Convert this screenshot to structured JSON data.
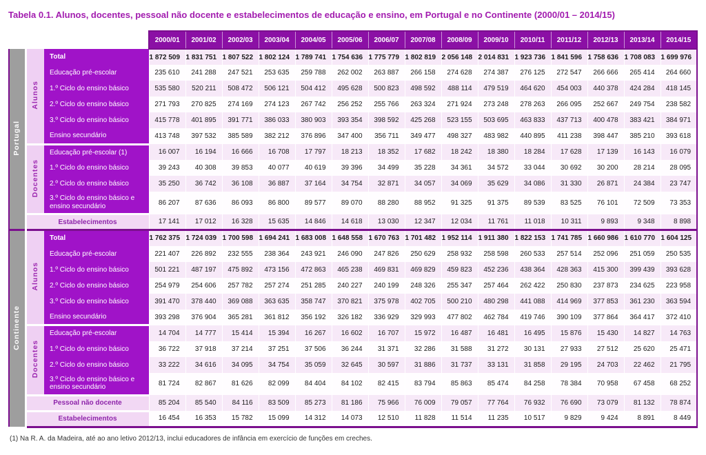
{
  "title": "Tabela 0.1. Alunos, docentes, pessoal não docente e estabelecimentos de educação e ensino, em Portugal e no Continente (2000/01 – 2014/15)",
  "footnote": "(1) Na R. A. da Madeira, até ao ano letivo 2012/13, inclui educadores de infância em exercício de funções em creches.",
  "colors": {
    "header_bg": "#8B10A5",
    "row_label_bg": "#A013C8",
    "group_bg": "#9E9E9E",
    "subgroup_bg": "#EFD0F3",
    "stripe_bg": "#F7E9F8",
    "special_label_bg": "#F2D8F4",
    "frame_accent": "#7B0F8E",
    "title_color": "#A21CAF"
  },
  "chart_data": {
    "type": "table",
    "title": "Tabela 0.1. Alunos, docentes, pessoal não docente e estabelecimentos de educação e ensino, em Portugal e no Continente (2000/01 – 2014/15)",
    "years": [
      "2000/01",
      "2001/02",
      "2002/03",
      "2003/04",
      "2004/05",
      "2005/06",
      "2006/07",
      "2007/08",
      "2008/09",
      "2009/10",
      "2010/11",
      "2011/12",
      "2012/13",
      "2013/14",
      "2014/15"
    ],
    "sections": [
      {
        "group": "Portugal",
        "blocks": [
          {
            "subgroup": "Alunos",
            "rows": [
              {
                "label": "Total",
                "bold": true,
                "values": [
                  "1 872 509",
                  "1 831 751",
                  "1 807 522",
                  "1 802 124",
                  "1 789 741",
                  "1 754 636",
                  "1 775 779",
                  "1 802 819",
                  "2 056 148",
                  "2 014 831",
                  "1 923 736",
                  "1 841 596",
                  "1 758 636",
                  "1 708 083",
                  "1 699 976"
                ]
              },
              {
                "label": "Educação pré-escolar",
                "bold": false,
                "values": [
                  "235 610",
                  "241 288",
                  "247 521",
                  "253 635",
                  "259 788",
                  "262 002",
                  "263 887",
                  "266 158",
                  "274 628",
                  "274 387",
                  "276 125",
                  "272 547",
                  "266 666",
                  "265 414",
                  "264 660"
                ]
              },
              {
                "label": "1.º Ciclo do ensino básico",
                "bold": false,
                "values": [
                  "535 580",
                  "520 211",
                  "508 472",
                  "506 121",
                  "504 412",
                  "495 628",
                  "500 823",
                  "498 592",
                  "488 114",
                  "479 519",
                  "464 620",
                  "454 003",
                  "440 378",
                  "424 284",
                  "418 145"
                ]
              },
              {
                "label": "2.º Ciclo do ensino básico",
                "bold": false,
                "values": [
                  "271 793",
                  "270 825",
                  "274 169",
                  "274 123",
                  "267 742",
                  "256 252",
                  "255 766",
                  "263 324",
                  "271 924",
                  "273 248",
                  "278 263",
                  "266 095",
                  "252 667",
                  "249 754",
                  "238 582"
                ]
              },
              {
                "label": "3.º Ciclo do ensino básico",
                "bold": false,
                "values": [
                  "415 778",
                  "401 895",
                  "391 771",
                  "386 033",
                  "380 903",
                  "393 354",
                  "398 592",
                  "425 268",
                  "523 155",
                  "503 695",
                  "463 833",
                  "437 713",
                  "400 478",
                  "383 421",
                  "384 971"
                ]
              },
              {
                "label": "Ensino secundário",
                "bold": false,
                "values": [
                  "413 748",
                  "397 532",
                  "385 589",
                  "382 212",
                  "376 896",
                  "347 400",
                  "356 711",
                  "349 477",
                  "498 327",
                  "483 982",
                  "440 895",
                  "411 238",
                  "398 447",
                  "385 210",
                  "393 618"
                ]
              }
            ]
          },
          {
            "subgroup": "Docentes",
            "rows": [
              {
                "label": "Educação pré-escolar (1)",
                "bold": false,
                "values": [
                  "16 007",
                  "16 194",
                  "16 666",
                  "16 708",
                  "17 797",
                  "18 213",
                  "18 352",
                  "17 682",
                  "18 242",
                  "18 380",
                  "18 284",
                  "17 628",
                  "17 139",
                  "16 143",
                  "16 079"
                ]
              },
              {
                "label": "1.º Ciclo do ensino básico",
                "bold": false,
                "values": [
                  "39 243",
                  "40 308",
                  "39 853",
                  "40 077",
                  "40 619",
                  "39 396",
                  "34 499",
                  "35 228",
                  "34 361",
                  "34 572",
                  "33 044",
                  "30 692",
                  "30 200",
                  "28 214",
                  "28 095"
                ]
              },
              {
                "label": "2.º Ciclo do ensino básico",
                "bold": false,
                "values": [
                  "35 250",
                  "36 742",
                  "36 108",
                  "36 887",
                  "37 164",
                  "34 754",
                  "32 871",
                  "34 057",
                  "34 069",
                  "35 629",
                  "34 086",
                  "31 330",
                  "26 871",
                  "24 384",
                  "23 747"
                ]
              },
              {
                "label": "3.º Ciclo do ensino básico e ensino secundário",
                "bold": false,
                "values": [
                  "86 207",
                  "87 636",
                  "86 093",
                  "86 800",
                  "89 577",
                  "89 070",
                  "88 280",
                  "88 952",
                  "91 325",
                  "91 375",
                  "89 539",
                  "83 525",
                  "76 101",
                  "72 509",
                  "73 353"
                ]
              }
            ]
          }
        ],
        "special_rows": [
          {
            "label": "Estabelecimentos",
            "values": [
              "17 141",
              "17 012",
              "16 328",
              "15 635",
              "14 846",
              "14 618",
              "13 030",
              "12 347",
              "12 034",
              "11 761",
              "11 018",
              "10 311",
              "9 893",
              "9 348",
              "8 898"
            ]
          }
        ]
      },
      {
        "group": "Continente",
        "blocks": [
          {
            "subgroup": "Alunos",
            "rows": [
              {
                "label": "Total",
                "bold": true,
                "values": [
                  "1 762 375",
                  "1 724 039",
                  "1 700 598",
                  "1 694 241",
                  "1 683 008",
                  "1 648 558",
                  "1 670 763",
                  "1 701 482",
                  "1 952 114",
                  "1 911 380",
                  "1 822 153",
                  "1 741 785",
                  "1 660 986",
                  "1 610 770",
                  "1 604 125"
                ]
              },
              {
                "label": "Educação pré-escolar",
                "bold": false,
                "values": [
                  "221 407",
                  "226 892",
                  "232 555",
                  "238 364",
                  "243 921",
                  "246 090",
                  "247 826",
                  "250 629",
                  "258 932",
                  "258 598",
                  "260 533",
                  "257 514",
                  "252 096",
                  "251 059",
                  "250 535"
                ]
              },
              {
                "label": "1.º Ciclo do ensino básico",
                "bold": false,
                "values": [
                  "501 221",
                  "487 197",
                  "475 892",
                  "473 156",
                  "472 863",
                  "465 238",
                  "469 831",
                  "469 829",
                  "459 823",
                  "452 236",
                  "438 364",
                  "428 363",
                  "415 300",
                  "399 439",
                  "393 628"
                ]
              },
              {
                "label": "2.º Ciclo do ensino básico",
                "bold": false,
                "values": [
                  "254 979",
                  "254 606",
                  "257 782",
                  "257 274",
                  "251 285",
                  "240 227",
                  "240 199",
                  "248 326",
                  "255 347",
                  "257 464",
                  "262 422",
                  "250 830",
                  "237 873",
                  "234 625",
                  "223 958"
                ]
              },
              {
                "label": "3.º Ciclo do ensino básico",
                "bold": false,
                "values": [
                  "391 470",
                  "378 440",
                  "369 088",
                  "363 635",
                  "358 747",
                  "370 821",
                  "375 978",
                  "402 705",
                  "500 210",
                  "480 298",
                  "441 088",
                  "414 969",
                  "377 853",
                  "361 230",
                  "363 594"
                ]
              },
              {
                "label": "Ensino secundário",
                "bold": false,
                "values": [
                  "393 298",
                  "376 904",
                  "365 281",
                  "361 812",
                  "356 192",
                  "326 182",
                  "336 929",
                  "329 993",
                  "477 802",
                  "462 784",
                  "419 746",
                  "390 109",
                  "377 864",
                  "364 417",
                  "372 410"
                ]
              }
            ]
          },
          {
            "subgroup": "Docentes",
            "rows": [
              {
                "label": "Educação pré-escolar",
                "bold": false,
                "values": [
                  "14 704",
                  "14 777",
                  "15 414",
                  "15 394",
                  "16 267",
                  "16 602",
                  "16 707",
                  "15 972",
                  "16 487",
                  "16 481",
                  "16 495",
                  "15 876",
                  "15 430",
                  "14 827",
                  "14 763"
                ]
              },
              {
                "label": "1.º Ciclo do ensino básico",
                "bold": false,
                "values": [
                  "36 722",
                  "37 918",
                  "37 214",
                  "37 251",
                  "37 506",
                  "36 244",
                  "31 371",
                  "32 286",
                  "31 588",
                  "31 272",
                  "30 131",
                  "27 933",
                  "27 512",
                  "25 620",
                  "25 471"
                ]
              },
              {
                "label": "2.º Ciclo do ensino básico",
                "bold": false,
                "values": [
                  "33 222",
                  "34 616",
                  "34 095",
                  "34 754",
                  "35 059",
                  "32 645",
                  "30 597",
                  "31 886",
                  "31 737",
                  "33 131",
                  "31 858",
                  "29 195",
                  "24 703",
                  "22 462",
                  "21 795"
                ]
              },
              {
                "label": "3.º Ciclo do ensino básico e ensino secundário",
                "bold": false,
                "values": [
                  "81 724",
                  "82 867",
                  "81 626",
                  "82 099",
                  "84 404",
                  "84 102",
                  "82 415",
                  "83 794",
                  "85 863",
                  "85 474",
                  "84 258",
                  "78 384",
                  "70 958",
                  "67 458",
                  "68 252"
                ]
              }
            ]
          }
        ],
        "special_rows": [
          {
            "label": "Pessoal não docente",
            "values": [
              "85 204",
              "85 540",
              "84 116",
              "83 509",
              "85 273",
              "81 186",
              "75 966",
              "76 009",
              "79 057",
              "77 764",
              "76 932",
              "76 690",
              "73 079",
              "81 132",
              "78 874"
            ]
          },
          {
            "label": "Estabelecimentos",
            "values": [
              "16 454",
              "16 353",
              "15 782",
              "15 099",
              "14 312",
              "14 073",
              "12 510",
              "11 828",
              "11 514",
              "11 235",
              "10 517",
              "9 829",
              "9 424",
              "8 891",
              "8 449"
            ]
          }
        ]
      }
    ]
  }
}
